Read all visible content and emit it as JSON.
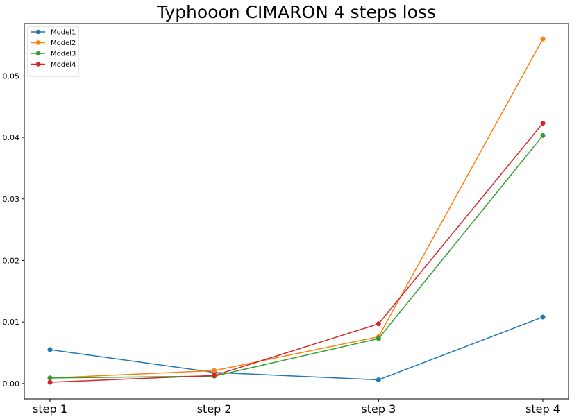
{
  "chart_data": {
    "type": "line",
    "title": "Typhooon CIMARON 4 steps loss",
    "xlabel": "",
    "ylabel": "",
    "categories": [
      "step 1",
      "step 2",
      "step 3",
      "step 4"
    ],
    "ylim": [
      -0.0025,
      0.0585
    ],
    "yticks": [
      "0.00",
      "0.01",
      "0.02",
      "0.03",
      "0.04",
      "0.05"
    ],
    "ytick_values": [
      0.0,
      0.01,
      0.02,
      0.03,
      0.04,
      0.05
    ],
    "grid": false,
    "legend_position": "top-left",
    "series": [
      {
        "name": "Model1",
        "color": "#1f77b4",
        "values": [
          0.0055,
          0.0018,
          0.0006,
          0.0108
        ]
      },
      {
        "name": "Model2",
        "color": "#ff7f0e",
        "values": [
          0.0009,
          0.0021,
          0.0076,
          0.056
        ]
      },
      {
        "name": "Model3",
        "color": "#2ca02c",
        "values": [
          0.0009,
          0.0012,
          0.0073,
          0.0403
        ]
      },
      {
        "name": "Model4",
        "color": "#d62728",
        "values": [
          0.0002,
          0.0013,
          0.0097,
          0.0423
        ]
      }
    ]
  }
}
